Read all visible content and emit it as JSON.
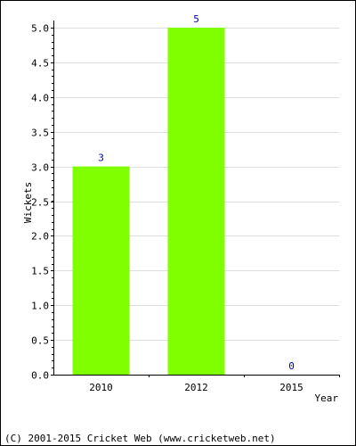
{
  "chart_data": {
    "type": "bar",
    "categories": [
      "2010",
      "2012",
      "2015"
    ],
    "values": [
      3,
      5,
      0
    ],
    "data_labels": [
      "3",
      "5",
      "0"
    ],
    "ylabel": "Wickets",
    "xlabel": "Year",
    "ylim": [
      0,
      5
    ],
    "yticks": [
      "0.0",
      "0.5",
      "1.0",
      "1.5",
      "2.0",
      "2.5",
      "3.0",
      "3.5",
      "4.0",
      "4.5",
      "5.0"
    ],
    "grid": true,
    "bar_color": "#80ff00",
    "label_color": "#0000aa",
    "grid_color": "#dddddd"
  },
  "footer": {
    "copyright": "(C) 2001-2015 Cricket Web (www.cricketweb.net)"
  }
}
